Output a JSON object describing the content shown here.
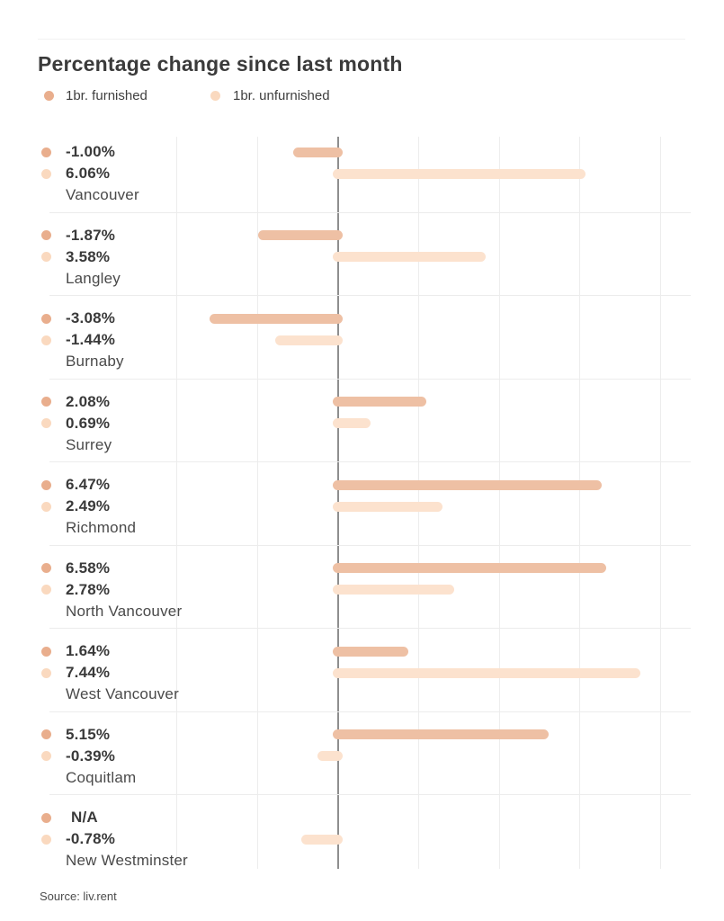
{
  "header": {
    "title": "Percentage change since last month"
  },
  "legend": {
    "items": [
      {
        "label": "1br. furnished",
        "color": "#e9ae8d"
      },
      {
        "label": "1br. unfurnished",
        "color": "#fad9bf"
      }
    ]
  },
  "chart_data": {
    "type": "bar",
    "orientation": "horizontal",
    "title": "Percentage change since last month",
    "xlabel": "",
    "ylabel": "",
    "grid": true,
    "legend_position": "top",
    "zero_baseline": true,
    "x_gridline_values_pct": [
      -4,
      -2,
      0,
      2,
      4,
      6,
      8
    ],
    "categories": [
      "Vancouver",
      "Langley",
      "Burnaby",
      "Surrey",
      "Richmond",
      "North Vancouver",
      "West Vancouver",
      "Coquitlam",
      "New Westminster"
    ],
    "series": [
      {
        "name": "1br. furnished",
        "values": [
          -1.0,
          -1.87,
          -3.08,
          2.08,
          6.47,
          6.58,
          1.64,
          5.15,
          null
        ],
        "labels": [
          "-1.00%",
          "-1.87%",
          "-3.08%",
          "2.08%",
          "6.47%",
          "6.58%",
          "1.64%",
          "5.15%",
          "N/A"
        ],
        "bar_color": "#eec0a4",
        "dot_color": "#e9ae8d"
      },
      {
        "name": "1br. unfurnished",
        "values": [
          6.06,
          3.58,
          -1.44,
          0.69,
          2.49,
          2.78,
          7.44,
          -0.39,
          -0.78
        ],
        "labels": [
          "6.06%",
          "3.58%",
          "-1.44%",
          "0.69%",
          "2.49%",
          "2.78%",
          "7.44%",
          "-0.39%",
          "-0.78%"
        ],
        "bar_color": "#fce2ce",
        "dot_color": "#fad9bf"
      }
    ]
  },
  "source": {
    "text": "Source: liv.rent"
  }
}
